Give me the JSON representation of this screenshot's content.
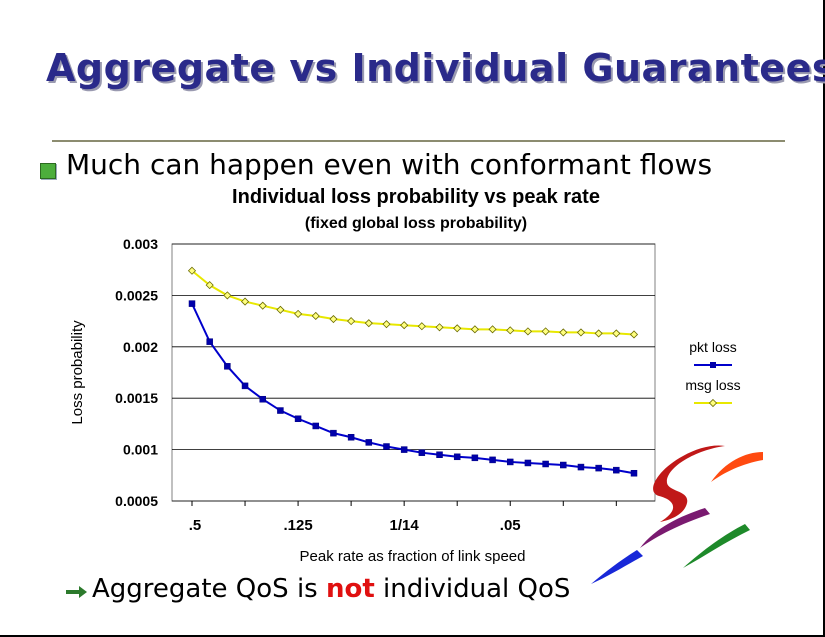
{
  "slide": {
    "title": "Aggregate vs Individual Guarantees",
    "bullet": "Much can happen even with conformant flows",
    "bottom_text_before": "Aggregate QoS is ",
    "bottom_text_emphasis": "not",
    "bottom_text_after": " individual QoS",
    "emphasis_color": "#e01010",
    "title_color": "#2a2a8a"
  },
  "chart_data": {
    "type": "line",
    "title": "Individual loss probability vs peak rate",
    "subtitle": "(fixed global loss probability)",
    "xlabel": "Peak rate as fraction of link speed",
    "ylabel": "Loss probability",
    "x_tick_labels": [
      ".5",
      ".125",
      "1/14",
      ".05"
    ],
    "y_ticks": [
      "0.003",
      "0.0025",
      "0.002",
      "0.0015",
      "0.001",
      "0.0005"
    ],
    "ylim": [
      0.0005,
      0.003
    ],
    "grid": true,
    "legend_placement": "right",
    "series": [
      {
        "name": "pkt loss",
        "color": "#0000cc",
        "marker": "square",
        "values": [
          0.00242,
          0.00205,
          0.00181,
          0.00162,
          0.00149,
          0.00138,
          0.0013,
          0.00123,
          0.00116,
          0.00112,
          0.00107,
          0.00103,
          0.001,
          0.00097,
          0.00095,
          0.00093,
          0.00092,
          0.0009,
          0.00088,
          0.00087,
          0.00086,
          0.00085,
          0.00083,
          0.00082,
          0.0008,
          0.00077
        ]
      },
      {
        "name": "msg loss",
        "color": "#e8e800",
        "marker": "diamond",
        "values": [
          0.00274,
          0.0026,
          0.0025,
          0.00244,
          0.0024,
          0.00236,
          0.00232,
          0.0023,
          0.00227,
          0.00225,
          0.00223,
          0.00222,
          0.00221,
          0.0022,
          0.00219,
          0.00218,
          0.00217,
          0.00217,
          0.00216,
          0.00215,
          0.00215,
          0.00214,
          0.00214,
          0.00213,
          0.00213,
          0.00212
        ]
      }
    ]
  },
  "icons": {
    "bullet": "green-square-bullet-icon",
    "arrow": "green-right-arrow-icon",
    "logo": "colorful-swoosh-logo-icon"
  }
}
